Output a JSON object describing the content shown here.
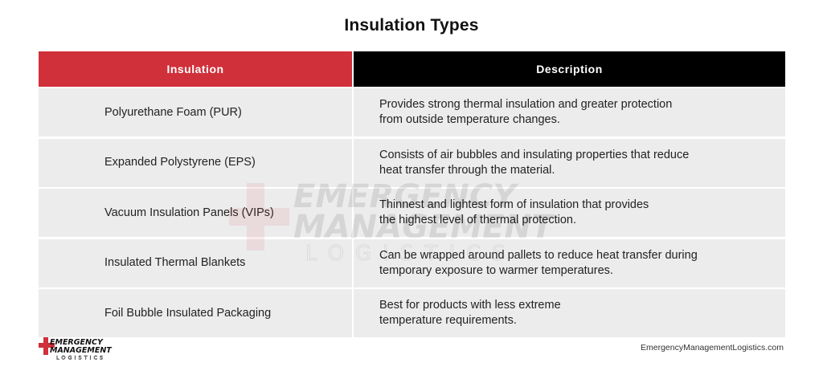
{
  "title": "Insulation Types",
  "table": {
    "headers": [
      "Insulation",
      "Description"
    ],
    "rows": [
      {
        "insulation": "Polyurethane Foam (PUR)",
        "description_lines": [
          "Provides strong thermal insulation and greater protection",
          "from outside temperature changes."
        ]
      },
      {
        "insulation": "Expanded Polystyrene (EPS)",
        "description_lines": [
          "Consists of air bubbles and insulating properties that reduce",
          "heat transfer through the material."
        ]
      },
      {
        "insulation": "Vacuum Insulation Panels (VIPs)",
        "description_lines": [
          "Thinnest and lightest form of insulation that provides",
          "the highest level of thermal protection."
        ]
      },
      {
        "insulation": "Insulated Thermal Blankets",
        "description_lines": [
          "Can be wrapped around pallets to reduce heat transfer during",
          "temporary exposure to warmer temperatures."
        ]
      },
      {
        "insulation": "Foil Bubble Insulated Packaging",
        "description_lines": [
          "Best for products with less extreme",
          "temperature requirements."
        ]
      }
    ]
  },
  "logo": {
    "line1": "EMERGENCY",
    "line2": "MANAGEMENT",
    "line3": "LOGISTICS"
  },
  "footer": {
    "url": "EmergencyManagementLogistics.com"
  },
  "colors": {
    "accent_red": "#d0303a",
    "header_black": "#000000",
    "row_background": "#ececec"
  }
}
